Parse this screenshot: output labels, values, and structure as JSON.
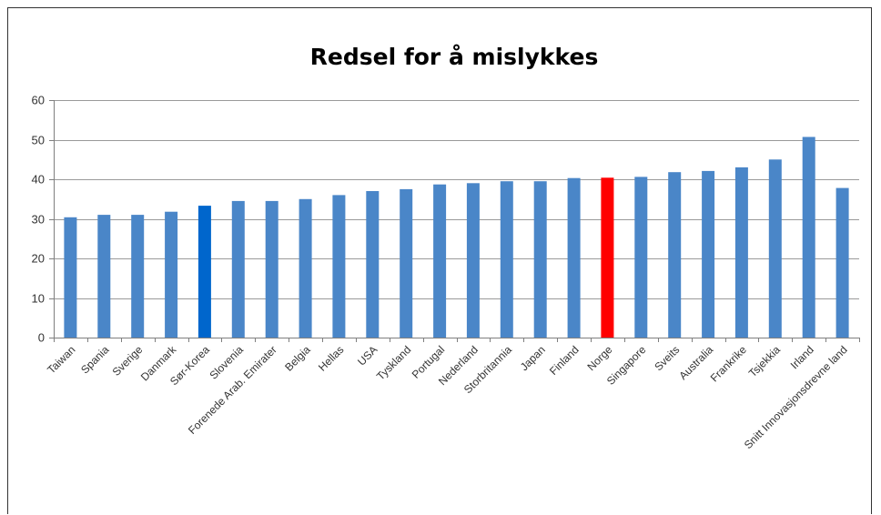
{
  "chart_data": {
    "type": "bar",
    "title": "Redsel for å mislykkes",
    "xlabel": "",
    "ylabel": "",
    "ylim": [
      0,
      60
    ],
    "yticks": [
      0,
      10,
      20,
      30,
      40,
      50,
      60
    ],
    "grid": true,
    "legend": "none",
    "categories": [
      "Taiwan",
      "Spania",
      "Sverige",
      "Danmark",
      "Sør-Korea",
      "Slovenia",
      "Forenede Arab. Emirater",
      "Belgia",
      "Hellas",
      "USA",
      "Tyskland",
      "Portugal",
      "Nederland",
      "Storbritannia",
      "Japan",
      "Finland",
      "Norge",
      "Singapore",
      "Sveits",
      "Australia",
      "Frankrike",
      "Tsjekkia",
      "Irland",
      "Snitt Innovasjonsdrevne land"
    ],
    "values": [
      30.4,
      31.0,
      31.0,
      31.8,
      33.3,
      34.5,
      34.5,
      35.0,
      36.0,
      37.0,
      37.5,
      38.7,
      39.0,
      39.5,
      39.5,
      40.3,
      40.4,
      40.6,
      41.8,
      42.1,
      43.0,
      45.0,
      50.7,
      37.8
    ],
    "colors": {
      "default": "#4a86c8",
      "highlight_sor_korea": "#0066cc",
      "highlight_norge": "#ff0000",
      "grid": "#9a9a9a",
      "axis": "#7f7f7f"
    },
    "bar_colors": [
      "#4a86c8",
      "#4a86c8",
      "#4a86c8",
      "#4a86c8",
      "#0066cc",
      "#4a86c8",
      "#4a86c8",
      "#4a86c8",
      "#4a86c8",
      "#4a86c8",
      "#4a86c8",
      "#4a86c8",
      "#4a86c8",
      "#4a86c8",
      "#4a86c8",
      "#4a86c8",
      "#ff0000",
      "#4a86c8",
      "#4a86c8",
      "#4a86c8",
      "#4a86c8",
      "#4a86c8",
      "#4a86c8",
      "#4a86c8"
    ]
  }
}
